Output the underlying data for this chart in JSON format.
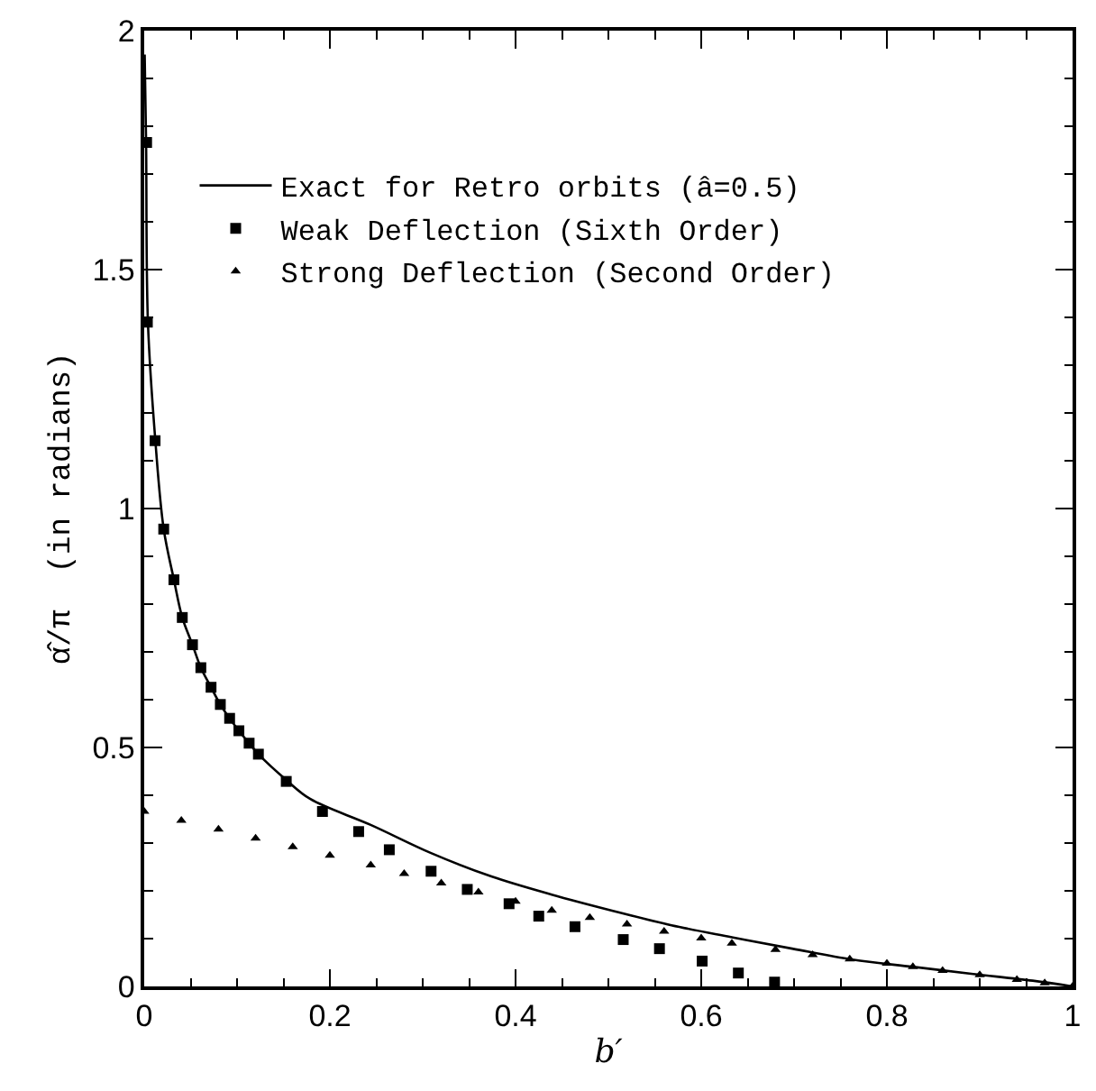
{
  "chart_data": {
    "type": "line",
    "xlabel": "b′",
    "ylabel": "α̂/π  (in radians)",
    "xlim": [
      0,
      1
    ],
    "ylim": [
      0,
      2
    ],
    "xticks": [
      0,
      0.2,
      0.4,
      0.6,
      0.8,
      1
    ],
    "yticks": [
      0,
      0.5,
      1,
      1.5,
      2
    ],
    "legend": "top left",
    "series": [
      {
        "name": "Exact for Retro orbits (â=0.5)",
        "color": "#000000",
        "line_style": "solid",
        "marker": "none",
        "x": [
          0.0005,
          0.002,
          0.004,
          0.012,
          0.021,
          0.032,
          0.041,
          0.052,
          0.061,
          0.072,
          0.082,
          0.092,
          0.102,
          0.113,
          0.123,
          0.153,
          0.179,
          0.244,
          0.309,
          0.374,
          0.439,
          0.503,
          0.568,
          0.633,
          0.698,
          0.763,
          0.828,
          0.893,
          0.957,
          1.0
        ],
        "values": [
          1.95,
          1.77,
          1.39,
          1.142,
          0.957,
          0.851,
          0.772,
          0.715,
          0.667,
          0.626,
          0.59,
          0.561,
          0.535,
          0.509,
          0.486,
          0.432,
          0.392,
          0.338,
          0.279,
          0.23,
          0.192,
          0.159,
          0.128,
          0.103,
          0.079,
          0.056,
          0.041,
          0.026,
          0.012,
          0.0
        ]
      },
      {
        "name": "Weak Deflection (Sixth Order)",
        "type": "scatter",
        "color": "#000000",
        "marker": "square",
        "x": [
          0.0026,
          0.0034,
          0.0117,
          0.021,
          0.032,
          0.041,
          0.052,
          0.061,
          0.072,
          0.082,
          0.092,
          0.102,
          0.113,
          0.123,
          0.153,
          0.192,
          0.231,
          0.264,
          0.309,
          0.348,
          0.393,
          0.425,
          0.464,
          0.516,
          0.555,
          0.601,
          0.64,
          0.679
        ],
        "values": [
          1.766,
          1.39,
          1.142,
          0.957,
          0.851,
          0.772,
          0.715,
          0.667,
          0.626,
          0.59,
          0.561,
          0.535,
          0.509,
          0.486,
          0.429,
          0.366,
          0.324,
          0.286,
          0.241,
          0.203,
          0.173,
          0.147,
          0.125,
          0.098,
          0.079,
          0.053,
          0.028,
          0.009
        ]
      },
      {
        "name": "Strong Deflection (Second Order)",
        "type": "scatter",
        "color": "#000000",
        "marker": "triangle",
        "x": [
          0.0,
          0.04,
          0.08,
          0.12,
          0.16,
          0.2,
          0.244,
          0.28,
          0.32,
          0.36,
          0.4,
          0.439,
          0.48,
          0.52,
          0.56,
          0.6,
          0.633,
          0.68,
          0.72,
          0.76,
          0.8,
          0.828,
          0.86,
          0.9,
          0.94,
          0.97,
          1.0
        ],
        "values": [
          0.366,
          0.347,
          0.329,
          0.31,
          0.292,
          0.274,
          0.254,
          0.236,
          0.216,
          0.197,
          0.178,
          0.159,
          0.144,
          0.13,
          0.115,
          0.101,
          0.09,
          0.077,
          0.066,
          0.057,
          0.048,
          0.041,
          0.033,
          0.024,
          0.014,
          0.007,
          0.0
        ]
      }
    ]
  }
}
